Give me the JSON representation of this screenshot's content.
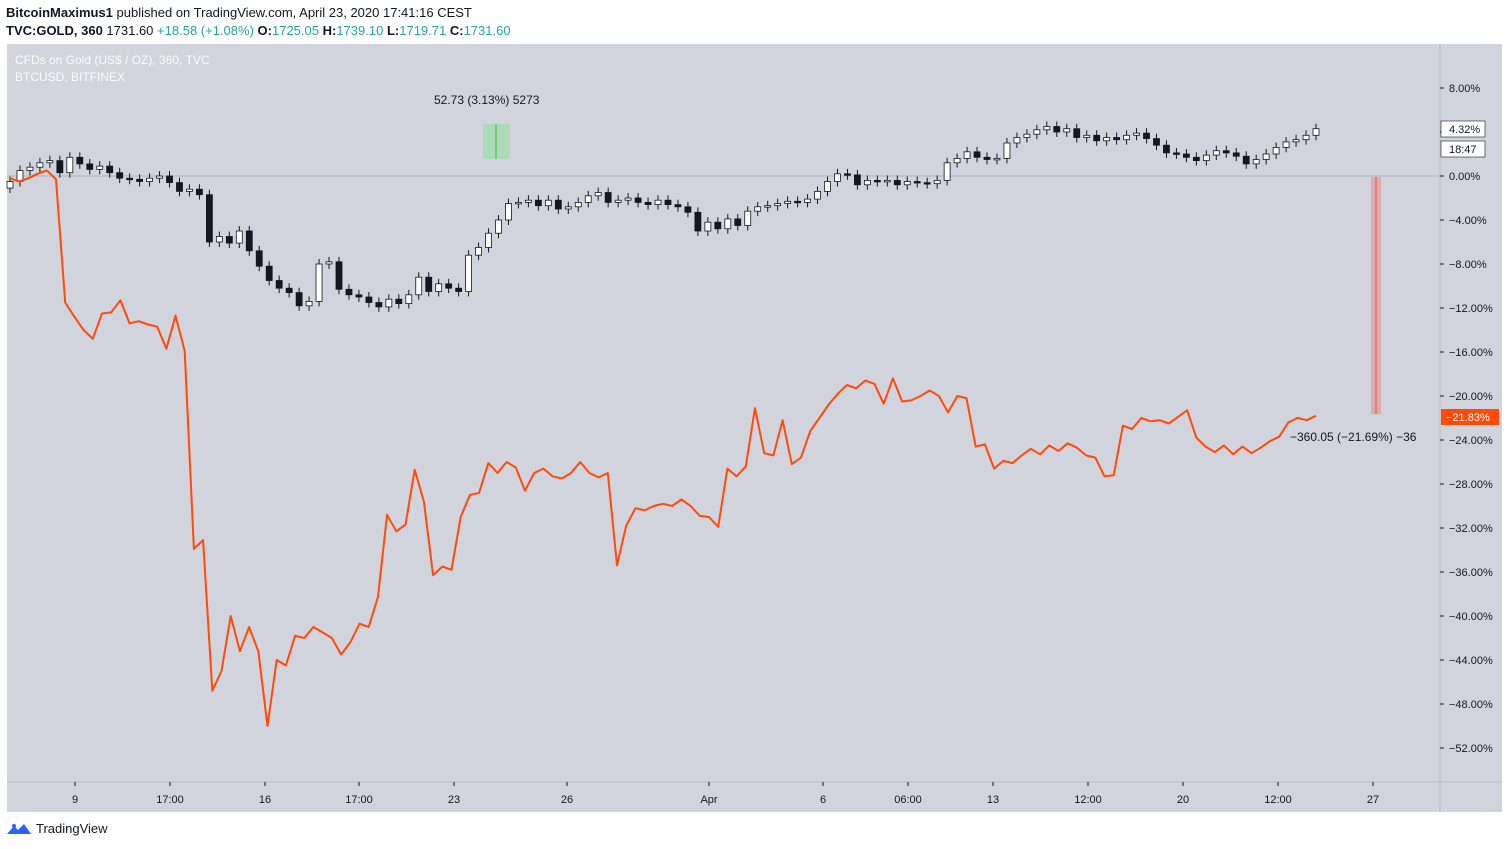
{
  "header": {
    "author": "BitcoinMaximus1",
    "published": "published on TradingView.com, April 23, 2020 17:41:16 CEST",
    "symbol": "TVC:GOLD, 360",
    "last": "1731.60",
    "change": "+18.58 (+1.08%)",
    "o_label": "O:",
    "o_value": "1725.05",
    "h_label": "H:",
    "h_value": "1739.10",
    "l_label": "L:",
    "l_value": "1719.71",
    "c_label": "C:",
    "c_value": "1731.60"
  },
  "legend": {
    "main": "CFDs on Gold (US$ / OZ), 360, TVC",
    "compare": "BTCUSD, BITFINEX"
  },
  "footer": {
    "brand": "TradingView"
  },
  "colors": {
    "background": "#d1d4dc",
    "btc_line": "#ff4a0a",
    "candle_up": "#ffffff",
    "candle_down": "#131722",
    "measure_up": "#8fe09a",
    "measure_down": "#f08080",
    "label_red": "#ff4a0a"
  },
  "chart_data": {
    "type": "line",
    "title": "CFDs on Gold (US$ / OZ), 360, TVC",
    "ylabel": "",
    "ylim": [
      -55,
      12
    ],
    "y_ticks": [
      "8.00%",
      "4.00%",
      "0.00%",
      "−4.00%",
      "−8.00%",
      "−12.00%",
      "−16.00%",
      "−20.00%",
      "−24.00%",
      "−28.00%",
      "−32.00%",
      "−36.00%",
      "−40.00%",
      "−44.00%",
      "−48.00%",
      "−52.00%"
    ],
    "x_ticks": [
      "9",
      "17:00",
      "16",
      "17:00",
      "23",
      "26",
      "Apr",
      "6",
      "06:00",
      "13",
      "12:00",
      "20",
      "12:00",
      "27"
    ],
    "gold_last_label": "4.32%",
    "countdown_label": "18:47",
    "btc_last_label": "−21.83%",
    "measure_up_text": "52.73 (3.13%) 5273",
    "measure_down_text": "−360.05 (−21.69%) −36",
    "series": [
      {
        "name": "CFDs on Gold (US$ / OZ), 360, TVC",
        "kind": "candlestick",
        "closes": [
          -0.5,
          0.5,
          0.8,
          1.2,
          1.4,
          0.3,
          1.7,
          1.1,
          0.6,
          0.9,
          0.3,
          -0.2,
          -0.3,
          -0.5,
          -0.2,
          0.0,
          -0.6,
          -1.4,
          -1.2,
          -1.7,
          -6.0,
          -5.5,
          -6.1,
          -5.0,
          -6.8,
          -8.2,
          -9.5,
          -10.2,
          -10.6,
          -11.8,
          -11.4,
          -8.0,
          -7.8,
          -10.3,
          -10.8,
          -11.0,
          -11.5,
          -11.9,
          -11.2,
          -11.6,
          -10.8,
          -9.2,
          -10.5,
          -9.8,
          -10.2,
          -10.5,
          -7.2,
          -6.5,
          -5.2,
          -4.0,
          -2.5,
          -2.4,
          -2.2,
          -2.7,
          -2.2,
          -3.0,
          -2.8,
          -2.4,
          -1.8,
          -1.5,
          -2.4,
          -2.2,
          -2.0,
          -2.4,
          -2.6,
          -2.2,
          -2.6,
          -2.8,
          -3.3,
          -5.0,
          -4.2,
          -4.8,
          -3.9,
          -4.5,
          -3.2,
          -2.8,
          -2.7,
          -2.5,
          -2.3,
          -2.4,
          -2.1,
          -1.4,
          -0.5,
          0.2,
          0.1,
          -0.8,
          -0.4,
          -0.5,
          -0.4,
          -0.8,
          -0.5,
          -0.6,
          -0.7,
          -0.4,
          1.2,
          1.6,
          2.2,
          1.7,
          1.5,
          1.6,
          3.0,
          3.5,
          3.8,
          4.2,
          4.5,
          4.0,
          4.3,
          3.5,
          3.7,
          3.2,
          3.5,
          3.3,
          3.7,
          3.9,
          3.4,
          2.8,
          2.1,
          2.0,
          1.7,
          1.4,
          1.9,
          2.3,
          2.1,
          1.8,
          1.1,
          1.5,
          2.0,
          2.6,
          3.1,
          3.3,
          3.7,
          4.3
        ]
      },
      {
        "name": "BTCUSD, BITFINEX",
        "kind": "line",
        "values": [
          -0.2,
          -0.5,
          -0.2,
          0.2,
          0.5,
          -0.3,
          -11.5,
          -12.8,
          -14.0,
          -14.8,
          -12.5,
          -12.4,
          -11.3,
          -13.4,
          -13.2,
          -13.5,
          -13.7,
          -15.7,
          -12.7,
          -15.9,
          -33.9,
          -33.1,
          -46.8,
          -45.0,
          -40.0,
          -43.2,
          -41.0,
          -43.2,
          -50.0,
          -44.0,
          -44.5,
          -41.8,
          -42.0,
          -41.0,
          -41.5,
          -42.0,
          -43.5,
          -42.4,
          -40.7,
          -41.0,
          -38.3,
          -30.8,
          -32.3,
          -31.7,
          -26.7,
          -29.6,
          -36.3,
          -35.5,
          -35.8,
          -31.0,
          -29.0,
          -28.8,
          -26.1,
          -27.0,
          -26.0,
          -26.5,
          -28.6,
          -27.0,
          -26.6,
          -27.3,
          -27.5,
          -27.0,
          -26.0,
          -27.0,
          -27.4,
          -27.0,
          -35.4,
          -31.8,
          -30.2,
          -30.4,
          -30.0,
          -29.8,
          -30.0,
          -29.4,
          -30.0,
          -30.9,
          -31.0,
          -31.9,
          -26.6,
          -27.3,
          -26.4,
          -21.1,
          -25.2,
          -25.4,
          -22.2,
          -26.2,
          -25.6,
          -23.2,
          -22.0,
          -20.8,
          -19.8,
          -19.0,
          -19.3,
          -18.6,
          -18.9,
          -20.7,
          -18.4,
          -20.5,
          -20.4,
          -20.0,
          -19.5,
          -20.0,
          -21.5,
          -20.0,
          -20.2,
          -24.6,
          -24.4,
          -26.6,
          -25.9,
          -26.1,
          -25.4,
          -24.8,
          -25.3,
          -24.5,
          -25.0,
          -24.3,
          -24.7,
          -25.4,
          -25.6,
          -27.3,
          -27.2,
          -22.7,
          -23.0,
          -22.0,
          -22.3,
          -22.2,
          -22.5,
          -21.9,
          -21.3,
          -23.8,
          -24.6,
          -25.1,
          -24.5,
          -25.3,
          -24.6,
          -25.2,
          -24.7,
          -24.1,
          -23.7,
          -22.4,
          -22.0,
          -22.2,
          -21.8
        ]
      }
    ]
  }
}
